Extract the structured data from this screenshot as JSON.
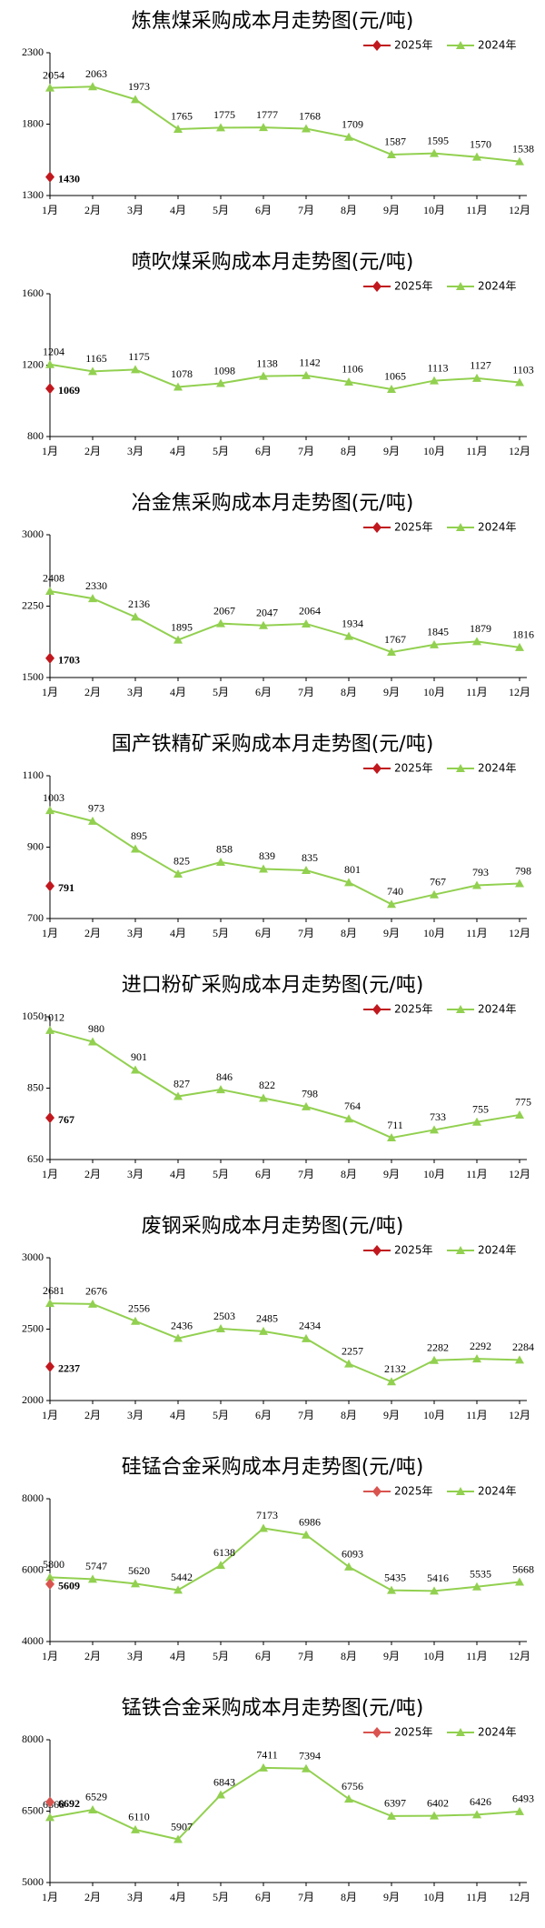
{
  "chart_data": [
    {
      "type": "line",
      "title": "炼焦煤采购成本月走势图(元/吨)",
      "categories": [
        "1月",
        "2月",
        "3月",
        "4月",
        "5月",
        "6月",
        "7月",
        "8月",
        "9月",
        "10月",
        "11月",
        "12月"
      ],
      "series": [
        {
          "name": "2025年",
          "color": "#c0181e",
          "values": [
            1430,
            null,
            null,
            null,
            null,
            null,
            null,
            null,
            null,
            null,
            null,
            null
          ]
        },
        {
          "name": "2024年",
          "color": "#92d050",
          "values": [
            2054,
            2063,
            1973,
            1765,
            1775,
            1777,
            1768,
            1709,
            1587,
            1595,
            1570,
            1538
          ]
        }
      ],
      "ylim": [
        1300,
        2300
      ],
      "yticks": [
        1300,
        1800,
        2300
      ]
    },
    {
      "type": "line",
      "title": "喷吹煤采购成本月走势图(元/吨)",
      "categories": [
        "1月",
        "2月",
        "3月",
        "4月",
        "5月",
        "6月",
        "7月",
        "8月",
        "9月",
        "10月",
        "11月",
        "12月"
      ],
      "series": [
        {
          "name": "2025年",
          "color": "#c0181e",
          "values": [
            1069,
            null,
            null,
            null,
            null,
            null,
            null,
            null,
            null,
            null,
            null,
            null
          ]
        },
        {
          "name": "2024年",
          "color": "#92d050",
          "values": [
            1204,
            1165,
            1175,
            1078,
            1098,
            1138,
            1142,
            1106,
            1065,
            1113,
            1127,
            1103
          ]
        }
      ],
      "ylim": [
        800,
        1600
      ],
      "yticks": [
        800,
        1200,
        1600
      ]
    },
    {
      "type": "line",
      "title": "冶金焦采购成本月走势图(元/吨)",
      "categories": [
        "1月",
        "2月",
        "3月",
        "4月",
        "5月",
        "6月",
        "7月",
        "8月",
        "9月",
        "10月",
        "11月",
        "12月"
      ],
      "series": [
        {
          "name": "2025年",
          "color": "#c0181e",
          "values": [
            1703,
            null,
            null,
            null,
            null,
            null,
            null,
            null,
            null,
            null,
            null,
            null
          ]
        },
        {
          "name": "2024年",
          "color": "#92d050",
          "values": [
            2408,
            2330,
            2136,
            1895,
            2067,
            2047,
            2064,
            1934,
            1767,
            1845,
            1879,
            1816
          ]
        }
      ],
      "ylim": [
        1500,
        3000
      ],
      "yticks": [
        1500,
        2250,
        3000
      ]
    },
    {
      "type": "line",
      "title": "国产铁精矿采购成本月走势图(元/吨)",
      "categories": [
        "1月",
        "2月",
        "3月",
        "4月",
        "5月",
        "6月",
        "7月",
        "8月",
        "9月",
        "10月",
        "11月",
        "12月"
      ],
      "series": [
        {
          "name": "2025年",
          "color": "#c0181e",
          "values": [
            791,
            null,
            null,
            null,
            null,
            null,
            null,
            null,
            null,
            null,
            null,
            null
          ]
        },
        {
          "name": "2024年",
          "color": "#92d050",
          "values": [
            1003,
            973,
            895,
            825,
            858,
            839,
            835,
            801,
            740,
            767,
            793,
            798
          ]
        }
      ],
      "ylim": [
        700,
        1100
      ],
      "yticks": [
        700,
        900,
        1100
      ]
    },
    {
      "type": "line",
      "title": "进口粉矿采购成本月走势图(元/吨)",
      "categories": [
        "1月",
        "2月",
        "3月",
        "4月",
        "5月",
        "6月",
        "7月",
        "8月",
        "9月",
        "10月",
        "11月",
        "12月"
      ],
      "series": [
        {
          "name": "2025年",
          "color": "#c0181e",
          "values": [
            767,
            null,
            null,
            null,
            null,
            null,
            null,
            null,
            null,
            null,
            null,
            null
          ]
        },
        {
          "name": "2024年",
          "color": "#92d050",
          "values": [
            1012,
            980,
            901,
            827,
            846,
            822,
            798,
            764,
            711,
            733,
            755,
            775
          ]
        }
      ],
      "ylim": [
        650,
        1050
      ],
      "yticks": [
        650,
        850,
        1050
      ]
    },
    {
      "type": "line",
      "title": "废钢采购成本月走势图(元/吨)",
      "categories": [
        "1月",
        "2月",
        "3月",
        "4月",
        "5月",
        "6月",
        "7月",
        "8月",
        "9月",
        "10月",
        "11月",
        "12月"
      ],
      "series": [
        {
          "name": "2025年",
          "color": "#c0181e",
          "values": [
            2237,
            null,
            null,
            null,
            null,
            null,
            null,
            null,
            null,
            null,
            null,
            null
          ]
        },
        {
          "name": "2024年",
          "color": "#92d050",
          "values": [
            2681,
            2676,
            2556,
            2436,
            2503,
            2485,
            2434,
            2257,
            2132,
            2282,
            2292,
            2284
          ]
        }
      ],
      "ylim": [
        2000,
        3000
      ],
      "yticks": [
        2000,
        2500,
        3000
      ]
    },
    {
      "type": "line",
      "title": "硅锰合金采购成本月走势图(元/吨)",
      "categories": [
        "1月",
        "2月",
        "3月",
        "4月",
        "5月",
        "6月",
        "7月",
        "8月",
        "9月",
        "10月",
        "11月",
        "12月"
      ],
      "series": [
        {
          "name": "2025年",
          "color": "#d9534f",
          "values": [
            5609,
            null,
            null,
            null,
            null,
            null,
            null,
            null,
            null,
            null,
            null,
            null
          ]
        },
        {
          "name": "2024年",
          "color": "#92d050",
          "values": [
            5800,
            5747,
            5620,
            5442,
            6138,
            7173,
            6986,
            6093,
            5435,
            5416,
            5535,
            5668
          ]
        }
      ],
      "ylim": [
        4000,
        8000
      ],
      "yticks": [
        4000,
        6000,
        8000
      ]
    },
    {
      "type": "line",
      "title": "锰铁合金采购成本月走势图(元/吨)",
      "categories": [
        "1月",
        "2月",
        "3月",
        "4月",
        "5月",
        "6月",
        "7月",
        "8月",
        "9月",
        "10月",
        "11月",
        "12月"
      ],
      "series": [
        {
          "name": "2025年",
          "color": "#d9534f",
          "values": [
            6692,
            null,
            null,
            null,
            null,
            null,
            null,
            null,
            null,
            null,
            null,
            null
          ]
        },
        {
          "name": "2024年",
          "color": "#92d050",
          "values": [
            6368,
            6529,
            6110,
            5907,
            6843,
            7411,
            7394,
            6756,
            6397,
            6402,
            6426,
            6493
          ]
        }
      ],
      "ylim": [
        5000,
        8000
      ],
      "yticks": [
        5000,
        6500,
        8000
      ]
    }
  ]
}
